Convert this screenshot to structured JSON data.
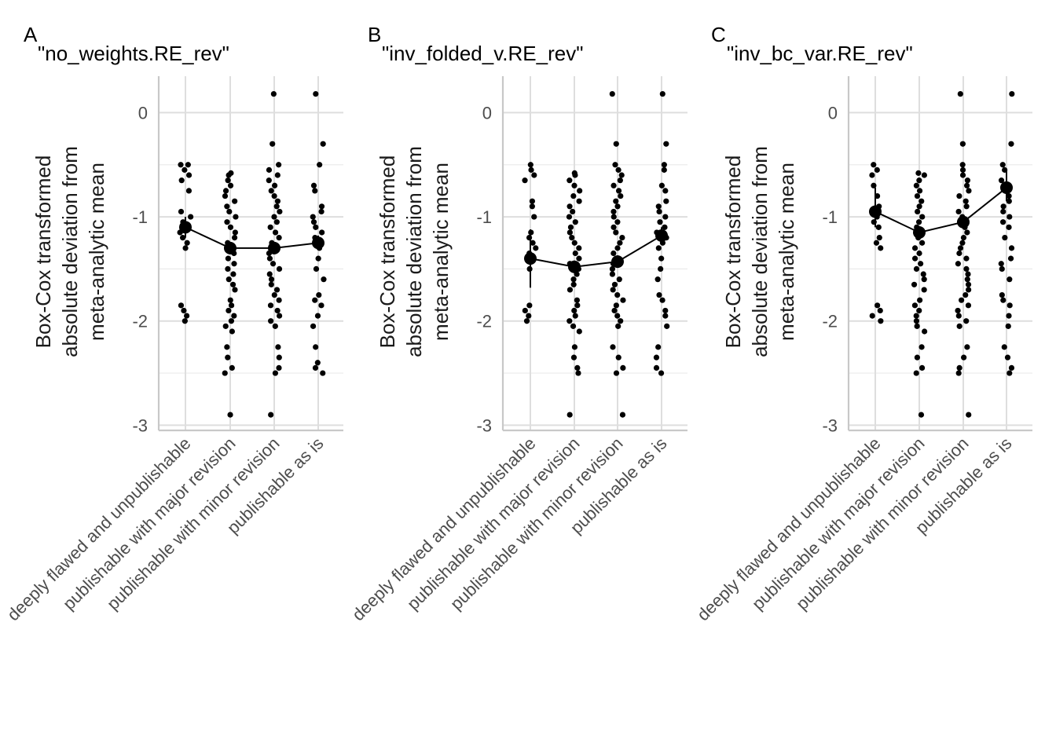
{
  "chart_data": [
    {
      "type": "scatter",
      "tag": "A",
      "title": "\"no_weights.RE_rev\"",
      "ylabel": [
        "Box-Cox transformed",
        "absolute deviation from",
        "meta-analytic mean"
      ],
      "xlabel": "",
      "categories": [
        "deeply flawed and unpublishable",
        "publishable with major revision",
        "publishable with minor revision",
        "publishable as is"
      ],
      "yticks": [
        0,
        -1,
        -2,
        -3
      ],
      "ylim": [
        -3.05,
        0.35
      ],
      "grid": true,
      "means": [
        -1.1,
        -1.3,
        -1.3,
        -1.25
      ],
      "mean_error": [
        [
          -1.0,
          -1.2
        ],
        [
          -1.26,
          -1.34
        ],
        [
          -1.26,
          -1.34
        ],
        [
          -1.18,
          -1.32
        ]
      ],
      "points": [
        [
          -0.5,
          -0.5,
          -0.55,
          -0.6,
          -0.65,
          -0.75,
          -0.95,
          -1.0,
          -1.05,
          -1.1,
          -1.15,
          -1.2,
          -1.25,
          -1.3,
          -1.85,
          -1.9,
          -1.95,
          -2.0
        ],
        [
          -0.58,
          -0.6,
          -0.65,
          -0.7,
          -0.75,
          -0.8,
          -0.85,
          -0.9,
          -0.95,
          -1.0,
          -1.05,
          -1.1,
          -1.15,
          -1.2,
          -1.25,
          -1.3,
          -1.35,
          -1.4,
          -1.45,
          -1.5,
          -1.55,
          -1.6,
          -1.65,
          -1.7,
          -1.8,
          -1.85,
          -1.9,
          -1.95,
          -2.0,
          -2.05,
          -2.1,
          -2.25,
          -2.35,
          -2.45,
          -2.5,
          -2.9
        ],
        [
          0.18,
          -0.3,
          -0.5,
          -0.55,
          -0.6,
          -0.65,
          -0.7,
          -0.75,
          -0.8,
          -0.85,
          -0.9,
          -0.95,
          -1.0,
          -1.05,
          -1.1,
          -1.15,
          -1.2,
          -1.25,
          -1.3,
          -1.35,
          -1.4,
          -1.45,
          -1.5,
          -1.55,
          -1.6,
          -1.65,
          -1.7,
          -1.75,
          -1.8,
          -1.85,
          -1.9,
          -1.95,
          -2.0,
          -2.05,
          -2.25,
          -2.35,
          -2.45,
          -2.5,
          -2.9
        ],
        [
          0.18,
          -0.3,
          -0.5,
          -0.7,
          -0.75,
          -0.9,
          -0.95,
          -1.0,
          -1.05,
          -1.1,
          -1.15,
          -1.2,
          -1.25,
          -1.3,
          -1.4,
          -1.5,
          -1.6,
          -1.75,
          -1.8,
          -1.85,
          -1.95,
          -2.05,
          -2.25,
          -2.4,
          -2.45,
          -2.5
        ]
      ]
    },
    {
      "type": "scatter",
      "tag": "B",
      "title": "\"inv_folded_v.RE_rev\"",
      "ylabel": [
        "Box-Cox transformed",
        "absolute deviation from",
        "meta-analytic mean"
      ],
      "xlabel": "",
      "categories": [
        "deeply flawed and unpublishable",
        "publishable with major revision",
        "publishable with minor revision",
        "publishable as is"
      ],
      "yticks": [
        0,
        -1,
        -2,
        -3
      ],
      "ylim": [
        -3.05,
        0.35
      ],
      "grid": true,
      "means": [
        -1.4,
        -1.48,
        -1.43,
        -1.18
      ],
      "mean_error": [
        [
          -1.12,
          -1.68
        ],
        [
          -1.42,
          -1.54
        ],
        [
          -1.37,
          -1.49
        ],
        [
          -1.1,
          -1.26
        ]
      ],
      "points": [
        [
          -0.5,
          -0.55,
          -0.6,
          -0.65,
          -0.85,
          -0.9,
          -1.0,
          -1.15,
          -1.2,
          -1.25,
          -1.3,
          -1.35,
          -1.5,
          -1.85,
          -1.9,
          -1.95,
          -2.0
        ],
        [
          -0.58,
          -0.6,
          -0.65,
          -0.7,
          -0.75,
          -0.8,
          -0.85,
          -0.9,
          -0.95,
          -1.0,
          -1.05,
          -1.1,
          -1.15,
          -1.2,
          -1.25,
          -1.3,
          -1.35,
          -1.4,
          -1.45,
          -1.5,
          -1.55,
          -1.6,
          -1.65,
          -1.7,
          -1.8,
          -1.85,
          -1.9,
          -1.95,
          -2.0,
          -2.05,
          -2.1,
          -2.25,
          -2.35,
          -2.45,
          -2.5,
          -2.9
        ],
        [
          0.18,
          -0.3,
          -0.5,
          -0.55,
          -0.6,
          -0.65,
          -0.7,
          -0.75,
          -0.8,
          -0.85,
          -0.9,
          -0.95,
          -1.0,
          -1.05,
          -1.1,
          -1.15,
          -1.2,
          -1.25,
          -1.3,
          -1.35,
          -1.4,
          -1.45,
          -1.5,
          -1.55,
          -1.6,
          -1.65,
          -1.7,
          -1.75,
          -1.8,
          -1.85,
          -1.9,
          -1.95,
          -2.0,
          -2.05,
          -2.25,
          -2.35,
          -2.45,
          -2.5,
          -2.9
        ],
        [
          0.18,
          -0.3,
          -0.5,
          -0.55,
          -0.7,
          -0.75,
          -0.85,
          -0.9,
          -0.95,
          -1.0,
          -1.05,
          -1.1,
          -1.15,
          -1.2,
          -1.25,
          -1.3,
          -1.4,
          -1.5,
          -1.6,
          -1.75,
          -1.8,
          -1.9,
          -1.95,
          -2.05,
          -2.25,
          -2.35,
          -2.45,
          -2.5
        ]
      ]
    },
    {
      "type": "scatter",
      "tag": "C",
      "title": "\"inv_bc_var.RE_rev\"",
      "ylabel": [
        "Box-Cox transformed",
        "absolute deviation from",
        "meta-analytic mean"
      ],
      "xlabel": "",
      "categories": [
        "deeply flawed and unpublishable",
        "publishable with major revision",
        "publishable with minor revision",
        "publishable as is"
      ],
      "yticks": [
        0,
        -1,
        -2,
        -3
      ],
      "ylim": [
        -3.05,
        0.35
      ],
      "grid": true,
      "means": [
        -0.95,
        -1.15,
        -1.05,
        -0.72
      ],
      "mean_error": [
        [
          -0.72,
          -1.1
        ],
        [
          -1.1,
          -1.2
        ],
        [
          -1.0,
          -1.1
        ],
        [
          -0.55,
          -0.85
        ]
      ],
      "points": [
        [
          -0.5,
          -0.55,
          -0.6,
          -0.7,
          -0.8,
          -0.9,
          -0.95,
          -1.0,
          -1.05,
          -1.1,
          -1.2,
          -1.25,
          -1.3,
          -1.85,
          -1.9,
          -1.95,
          -2.0
        ],
        [
          -0.58,
          -0.6,
          -0.65,
          -0.7,
          -0.75,
          -0.8,
          -0.85,
          -0.9,
          -0.95,
          -1.0,
          -1.05,
          -1.1,
          -1.15,
          -1.2,
          -1.25,
          -1.3,
          -1.35,
          -1.4,
          -1.45,
          -1.5,
          -1.55,
          -1.6,
          -1.65,
          -1.7,
          -1.8,
          -1.85,
          -1.9,
          -1.95,
          -2.0,
          -2.05,
          -2.1,
          -2.25,
          -2.35,
          -2.45,
          -2.5,
          -2.9
        ],
        [
          0.18,
          -0.3,
          -0.5,
          -0.55,
          -0.6,
          -0.65,
          -0.7,
          -0.75,
          -0.8,
          -0.85,
          -0.9,
          -0.95,
          -1.0,
          -1.05,
          -1.1,
          -1.15,
          -1.2,
          -1.25,
          -1.3,
          -1.35,
          -1.4,
          -1.45,
          -1.5,
          -1.55,
          -1.6,
          -1.65,
          -1.7,
          -1.75,
          -1.8,
          -1.85,
          -1.9,
          -1.95,
          -2.0,
          -2.05,
          -2.25,
          -2.35,
          -2.45,
          -2.5,
          -2.9
        ],
        [
          0.18,
          -0.3,
          -0.5,
          -0.55,
          -0.65,
          -0.7,
          -0.8,
          -0.85,
          -0.9,
          -0.95,
          -1.0,
          -1.05,
          -1.1,
          -1.2,
          -1.3,
          -1.4,
          -1.45,
          -1.5,
          -1.6,
          -1.75,
          -1.8,
          -1.85,
          -1.95,
          -2.05,
          -2.25,
          -2.35,
          -2.45,
          -2.5
        ]
      ]
    }
  ]
}
